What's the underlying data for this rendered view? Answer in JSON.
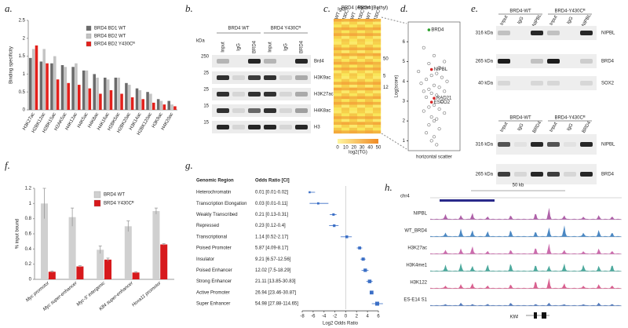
{
  "panel_labels": [
    "a.",
    "b.",
    "c.",
    "d.",
    "e.",
    "f.",
    "g.",
    "h."
  ],
  "chart_data": [
    {
      "type": "bar",
      "ylabel": "Binding specificity",
      "categories": [
        "H3K27ac",
        "H2BK12ac",
        "H2BK15ac",
        "H2AK5ac",
        "H4K12ac",
        "H4K5ac",
        "H4K8ac",
        "H4K16ac",
        "H2BK5ac",
        "H2BK20ac",
        "H3K14ac",
        "H2BK120ac",
        "H3K9ac",
        "H4K20ac"
      ],
      "series": [
        {
          "name": "BRD4 BD1 WT",
          "color": "#6b6b6b",
          "values": [
            1.45,
            1.35,
            1.3,
            1.25,
            1.2,
            1.1,
            1.0,
            0.9,
            0.9,
            0.75,
            0.6,
            0.5,
            0.3,
            0.25
          ]
        },
        {
          "name": "BRD4 BD2 WT",
          "color": "#c4c4c4",
          "values": [
            1.7,
            1.7,
            1.5,
            1.2,
            1.3,
            1.1,
            0.9,
            0.85,
            0.9,
            0.7,
            0.55,
            0.45,
            0.25,
            0.15
          ]
        },
        {
          "name": "BRD4 BD2 Y430Cᴿ",
          "color": "#e3201b",
          "values": [
            1.8,
            1.3,
            0.85,
            0.75,
            0.7,
            0.6,
            0.45,
            0.55,
            0.45,
            0.35,
            0.3,
            0.2,
            0.15,
            0.1
          ]
        }
      ],
      "ylim": [
        0,
        2.5
      ],
      "yticks": [
        0,
        0.5,
        1,
        1.5,
        2,
        2.5
      ]
    },
    {
      "type": "bar",
      "ylabel": "% input bound",
      "categories": [
        "Myc promotor",
        "Myc super-enhancer",
        "Myc-5' intergenic",
        "Klf4 super-enhancer",
        "Hoxa11 promotor"
      ],
      "series": [
        {
          "name": "BRD4 WT",
          "color": "#d0d0d0",
          "values": [
            1.0,
            0.82,
            0.39,
            0.7,
            0.9
          ],
          "errors": [
            0.2,
            0.12,
            0.05,
            0.07,
            0.04
          ]
        },
        {
          "name": "BRD4 Y430Cᴿ",
          "color": "#d7191c",
          "values": [
            0.1,
            0.17,
            0.26,
            0.09,
            0.46
          ],
          "errors": [
            0.01,
            0.01,
            0.02,
            0.01,
            0.01
          ]
        }
      ],
      "ylim": [
        0,
        1.2
      ],
      "yticks": [
        0,
        0.2,
        0.4,
        0.6,
        0.8,
        1,
        1.2
      ]
    },
    {
      "type": "forest",
      "headers": [
        "Genomic Region",
        "Odds Ratio [CI]"
      ],
      "xlabel": "Log2 Odds Ratio",
      "xscale": "log2",
      "xlim": [
        -8,
        6
      ],
      "xticks": [
        -8,
        -6,
        -4,
        -2,
        0,
        2,
        4,
        6
      ],
      "color": "#3b6fc6",
      "rows": [
        {
          "region": "Heterochromatin",
          "label": "0.01 [0.01-0.02]",
          "or": 0.01,
          "ci": [
            0.01,
            0.02
          ]
        },
        {
          "region": "Transcription Elongation",
          "label": "0.03 [0.01-0.11]",
          "or": 0.03,
          "ci": [
            0.01,
            0.11
          ]
        },
        {
          "region": "Weakly Transcribed",
          "label": "0.21 [0.13-0.31]",
          "or": 0.21,
          "ci": [
            0.13,
            0.31
          ]
        },
        {
          "region": "Repressed",
          "label": "0.23 [0.12-0.4]",
          "or": 0.23,
          "ci": [
            0.12,
            0.4
          ]
        },
        {
          "region": "Transcriptional",
          "label": "1.14 [0.52-2.17]",
          "or": 1.14,
          "ci": [
            0.52,
            2.17
          ]
        },
        {
          "region": "Poised Promoter",
          "label": "5.87 [4.09-8.17]",
          "or": 5.87,
          "ci": [
            4.09,
            8.17
          ]
        },
        {
          "region": "Insulator",
          "label": "9.21 [6.57-12.56]",
          "or": 9.21,
          "ci": [
            6.57,
            12.56
          ]
        },
        {
          "region": "Poised Enhancer",
          "label": "12.02 [7.5-18.29]",
          "or": 12.02,
          "ci": [
            7.5,
            18.29
          ]
        },
        {
          "region": "Strong Enhancer",
          "label": "21.11 [13.85-30.83]",
          "or": 21.11,
          "ci": [
            13.85,
            30.83
          ]
        },
        {
          "region": "Active Promoter",
          "label": "26.94 [23.46-30.87]",
          "or": 26.94,
          "ci": [
            23.46,
            30.87
          ]
        },
        {
          "region": "Super Enhancer",
          "label": "54.98 [27.88-114.65]",
          "or": 54.98,
          "ci": [
            27.88,
            114.65
          ]
        }
      ]
    },
    {
      "type": "scatter",
      "xlabel": "horizontal scatter",
      "ylabel": "Log(score)",
      "color": "#555555",
      "xlim": [
        0,
        1
      ],
      "ylim": [
        0.5,
        7
      ],
      "yticks": [
        1,
        2,
        3,
        4,
        5,
        6
      ],
      "x": [
        0.3,
        0.5,
        0.7,
        0.4,
        0.6,
        0.2,
        0.55,
        0.45,
        0.65,
        0.35,
        0.75,
        0.25,
        0.5,
        0.6,
        0.4,
        0.3,
        0.7,
        0.45,
        0.55,
        0.35,
        0.65,
        0.5,
        0.4,
        0.6,
        0.3,
        0.7,
        0.45,
        0.55,
        0.5,
        0.4,
        0.6,
        0.35,
        0.5,
        0.45,
        0.55
      ],
      "values": [
        5.7,
        5.3,
        5.0,
        4.9,
        4.7,
        4.5,
        4.4,
        4.3,
        4.2,
        4.1,
        4.0,
        3.9,
        3.8,
        3.7,
        3.6,
        3.5,
        3.5,
        3.4,
        3.3,
        3.2,
        3.0,
        2.8,
        2.7,
        2.6,
        2.5,
        2.4,
        2.2,
        2.1,
        2.0,
        1.8,
        1.6,
        1.4,
        1.2,
        1.0,
        0.8
      ],
      "highlights": [
        {
          "name": "BRD4",
          "x": 0.4,
          "y": 6.6,
          "color": "#2ca02c"
        },
        {
          "name": "NIPBL",
          "x": 0.45,
          "y": 4.6,
          "color": "#d62728"
        },
        {
          "name": "RAD21",
          "x": 0.5,
          "y": 3.15,
          "color": "#d62728"
        },
        {
          "name": "ESCO2",
          "x": 0.45,
          "y": 2.95,
          "color": "#d62728"
        }
      ]
    }
  ],
  "blot_b": {
    "groups": [
      "BRD4 WT",
      "BRD4 Y430Cᴿ"
    ],
    "lanes": [
      "Input",
      "IgG",
      "BRD4",
      "Input",
      "IgG",
      "BRD4"
    ],
    "kda": "kDa",
    "rows": [
      {
        "antibody": "Brd4",
        "marker": 250
      },
      {
        "antibody": "H3K9ac",
        "marker": 25
      },
      {
        "antibody": "H3K27ac",
        "marker": 25
      },
      {
        "antibody": "H4K8ac",
        "marker": 15
      },
      {
        "antibody": "H3",
        "marker": 15
      }
    ]
  },
  "heatmap_c": {
    "groups": [
      "IgG",
      "BRD4 (Abcam)",
      "BRD4 (Bethyl)"
    ],
    "columns": [
      "WT",
      "Y430Cᴿ",
      "WT",
      "Y430Cᴿ",
      "WT",
      "Y430Cᴿ"
    ],
    "row_marks": [
      50,
      5,
      12
    ],
    "colorbar_ticks": [
      0,
      10,
      20,
      30,
      40,
      50
    ],
    "colorbar_label": "log2(TG)"
  },
  "blot_e": [
    {
      "groups": [
        "BRD4-WT",
        "BRD4-Y430Cᴿ"
      ],
      "lanes": [
        "Input",
        "IgG",
        "NIPBL",
        "Input",
        "IgG",
        "NIPBL"
      ],
      "rows": [
        {
          "antibody": "NIPBL",
          "marker": "316 kDa"
        },
        {
          "antibody": "BRD4",
          "marker": "265 kDa"
        },
        {
          "antibody": "SOX2",
          "marker": "40 kDa"
        }
      ]
    },
    {
      "groups": [
        "BRD4-WT",
        "BRD4-Y430Cᴿ"
      ],
      "lanes": [
        "Input",
        "IgG",
        "BRD4",
        "Input",
        "IgG",
        "BRD4"
      ],
      "rows": [
        {
          "antibody": "NIPBL",
          "marker": "316 kDa"
        },
        {
          "antibody": "BRD4",
          "marker": "265 kDa"
        }
      ]
    }
  ],
  "tracks_h": {
    "chrom": "chr4",
    "scale": "50 kb",
    "gene": "Klf4",
    "tracks": [
      {
        "name": "NIPBL",
        "color": "#a1459a"
      },
      {
        "name": "WT_BRD4",
        "color": "#2b73b8"
      },
      {
        "name": "H3K27ac",
        "color": "#c2529f"
      },
      {
        "name": "H3K4me1",
        "color": "#2e9a8c"
      },
      {
        "name": "H3K122",
        "color": "#d2457d"
      },
      {
        "name": "ES-E14 S1",
        "color": "#3463b0"
      }
    ]
  }
}
